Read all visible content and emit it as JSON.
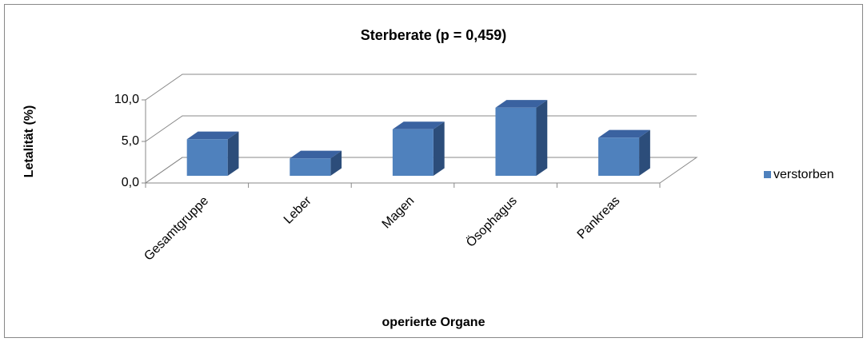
{
  "chart_data": {
    "type": "bar3d",
    "title": "Sterberate (p = 0,459)",
    "x_label": "operierte Organe",
    "y_label": "Letalität (%)",
    "categories": [
      "Gesamtgruppe",
      "Leber",
      "Magen",
      "Ösophagus",
      "Pankreas"
    ],
    "series": [
      {
        "name": "verstorben",
        "color": "#4f81bd",
        "values": [
          4.4,
          2.1,
          5.6,
          8.2,
          4.6
        ]
      }
    ],
    "ylim": [
      0,
      10
    ],
    "yticks": [
      {
        "value": 0,
        "label": "0,0"
      },
      {
        "value": 5,
        "label": "5,0"
      },
      {
        "value": 10,
        "label": "10,0"
      }
    ],
    "grid": true,
    "legend": "right"
  }
}
